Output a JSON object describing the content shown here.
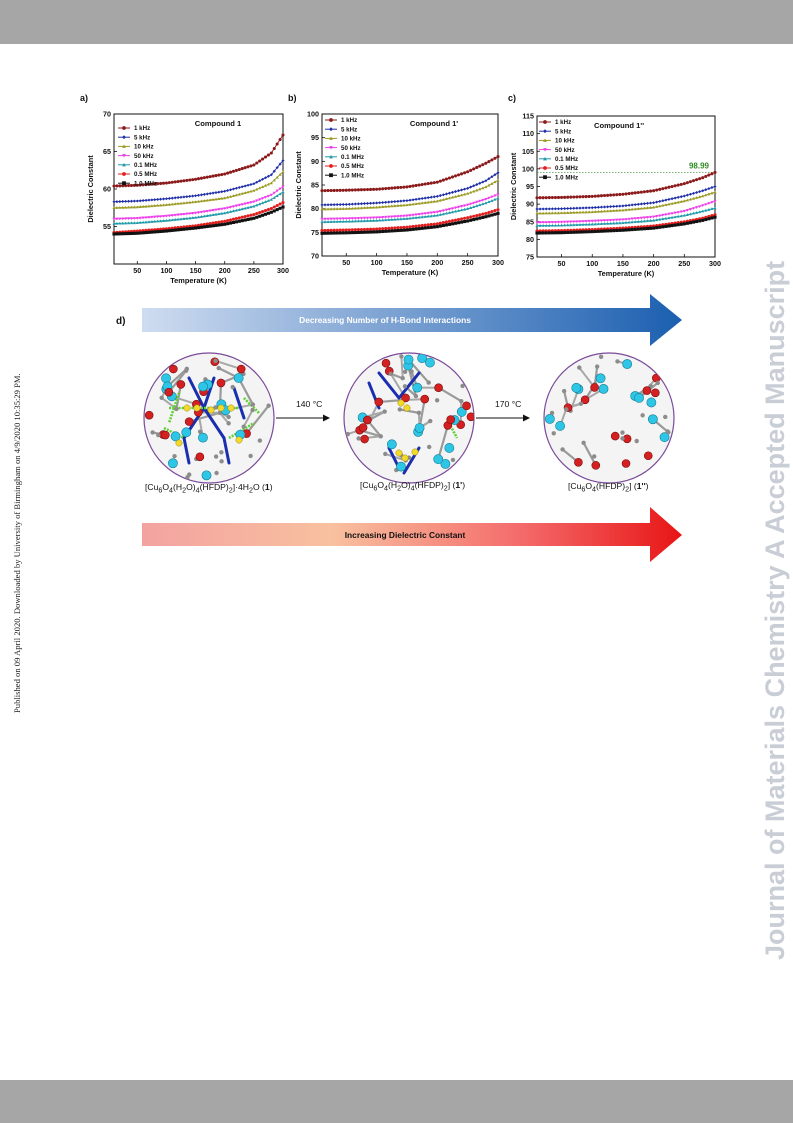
{
  "side_notes": {
    "published": "Published on 09 April 2020. Downloaded by University of Birmingham on 4/9/2020 10:35:29 PM.",
    "watermark": "Journal of Materials Chemistry A Accepted Manuscript"
  },
  "legend_colors": {
    "1 kHz": "#8b1a1a",
    "5 kHz": "#1f2fa8",
    "10 kHz": "#9a9a22",
    "50 kHz": "#ee3ee8",
    "0.1 MHz": "#1f9aa8",
    "0.5 MHz": "#e21f1f",
    "1.0 MHz": "#111111"
  },
  "chart_data": [
    {
      "type": "line",
      "panel": "a)",
      "title": "Compound 1",
      "xlabel": "Temperature (K)",
      "ylabel": "Dielectric Constant",
      "xlim": [
        10,
        300
      ],
      "ylim": [
        50,
        70
      ],
      "xticks": [
        50,
        100,
        150,
        200,
        250,
        300
      ],
      "yticks": [
        55,
        60,
        65,
        70
      ],
      "legend_labels": [
        "1  kHz",
        "5  kHz",
        "10  kHz",
        "50  kHz",
        "0.1 MHz",
        "0.5 MHz",
        "1.0 MHz"
      ],
      "series": [
        {
          "name": "1 kHz",
          "points": [
            [
              10,
              60.4
            ],
            [
              50,
              60.5
            ],
            [
              100,
              60.8
            ],
            [
              150,
              61.3
            ],
            [
              200,
              62.0
            ],
            [
              250,
              63.2
            ],
            [
              280,
              64.8
            ],
            [
              300,
              67.2
            ]
          ]
        },
        {
          "name": "5 kHz",
          "points": [
            [
              10,
              58.3
            ],
            [
              50,
              58.4
            ],
            [
              100,
              58.7
            ],
            [
              150,
              59.1
            ],
            [
              200,
              59.7
            ],
            [
              250,
              60.7
            ],
            [
              280,
              61.9
            ],
            [
              300,
              63.8
            ]
          ]
        },
        {
          "name": "10 kHz",
          "points": [
            [
              10,
              57.5
            ],
            [
              50,
              57.6
            ],
            [
              100,
              57.9
            ],
            [
              150,
              58.3
            ],
            [
              200,
              58.8
            ],
            [
              250,
              59.8
            ],
            [
              280,
              60.8
            ],
            [
              300,
              62.3
            ]
          ]
        },
        {
          "name": "50 kHz",
          "points": [
            [
              10,
              56.0
            ],
            [
              50,
              56.1
            ],
            [
              100,
              56.4
            ],
            [
              150,
              56.8
            ],
            [
              200,
              57.4
            ],
            [
              250,
              58.3
            ],
            [
              280,
              59.2
            ],
            [
              300,
              60.3
            ]
          ]
        },
        {
          "name": "0.1 MHz",
          "points": [
            [
              10,
              55.4
            ],
            [
              50,
              55.5
            ],
            [
              100,
              55.8
            ],
            [
              150,
              56.2
            ],
            [
              200,
              56.8
            ],
            [
              250,
              57.7
            ],
            [
              280,
              58.6
            ],
            [
              300,
              59.6
            ]
          ]
        },
        {
          "name": "0.5 MHz",
          "points": [
            [
              10,
              54.2
            ],
            [
              50,
              54.4
            ],
            [
              100,
              54.7
            ],
            [
              150,
              55.1
            ],
            [
              200,
              55.7
            ],
            [
              250,
              56.6
            ],
            [
              280,
              57.4
            ],
            [
              300,
              58.2
            ]
          ]
        },
        {
          "name": "1.0 MHz",
          "points": [
            [
              10,
              54.0
            ],
            [
              50,
              54.1
            ],
            [
              100,
              54.4
            ],
            [
              150,
              54.8
            ],
            [
              200,
              55.3
            ],
            [
              250,
              56.1
            ],
            [
              280,
              56.9
            ],
            [
              300,
              57.6
            ]
          ]
        }
      ]
    },
    {
      "type": "line",
      "panel": "b)",
      "title": "Compound 1'",
      "xlabel": "Temperature (K)",
      "ylabel": "Dielectric Constant",
      "xlim": [
        10,
        300
      ],
      "ylim": [
        70,
        100
      ],
      "xticks": [
        50,
        100,
        150,
        200,
        250,
        300
      ],
      "yticks": [
        70,
        75,
        80,
        85,
        90,
        95,
        100
      ],
      "legend_labels": [
        "1  kHz",
        "5  kHz",
        "10  kHz",
        "50  kHz",
        "0.1 MHz",
        "0.5 MHz",
        "1.0 MHz"
      ],
      "series": [
        {
          "name": "1 kHz",
          "points": [
            [
              10,
              83.8
            ],
            [
              50,
              83.9
            ],
            [
              100,
              84.1
            ],
            [
              150,
              84.6
            ],
            [
              200,
              85.6
            ],
            [
              250,
              87.8
            ],
            [
              280,
              89.6
            ],
            [
              300,
              91.0
            ]
          ]
        },
        {
          "name": "5 kHz",
          "points": [
            [
              10,
              80.8
            ],
            [
              50,
              80.9
            ],
            [
              100,
              81.2
            ],
            [
              150,
              81.7
            ],
            [
              200,
              82.6
            ],
            [
              250,
              84.3
            ],
            [
              280,
              85.9
            ],
            [
              300,
              87.6
            ]
          ]
        },
        {
          "name": "10 kHz",
          "points": [
            [
              10,
              79.9
            ],
            [
              50,
              80.0
            ],
            [
              100,
              80.3
            ],
            [
              150,
              80.8
            ],
            [
              200,
              81.6
            ],
            [
              250,
              83.2
            ],
            [
              280,
              84.6
            ],
            [
              300,
              86.0
            ]
          ]
        },
        {
          "name": "50 kHz",
          "points": [
            [
              10,
              77.8
            ],
            [
              50,
              77.9
            ],
            [
              100,
              78.1
            ],
            [
              150,
              78.5
            ],
            [
              200,
              79.3
            ],
            [
              250,
              80.8
            ],
            [
              280,
              82.0
            ],
            [
              300,
              83.0
            ]
          ]
        },
        {
          "name": "0.1 MHz",
          "points": [
            [
              10,
              77.2
            ],
            [
              50,
              77.3
            ],
            [
              100,
              77.5
            ],
            [
              150,
              77.9
            ],
            [
              200,
              78.6
            ],
            [
              250,
              80.0
            ],
            [
              280,
              81.2
            ],
            [
              300,
              82.2
            ]
          ]
        },
        {
          "name": "0.5 MHz",
          "points": [
            [
              10,
              75.4
            ],
            [
              50,
              75.5
            ],
            [
              100,
              75.7
            ],
            [
              150,
              76.1
            ],
            [
              200,
              76.8
            ],
            [
              250,
              78.1
            ],
            [
              280,
              79.0
            ],
            [
              300,
              79.8
            ]
          ]
        },
        {
          "name": "1.0 MHz",
          "points": [
            [
              10,
              74.8
            ],
            [
              50,
              74.9
            ],
            [
              100,
              75.1
            ],
            [
              150,
              75.5
            ],
            [
              200,
              76.2
            ],
            [
              250,
              77.4
            ],
            [
              280,
              78.3
            ],
            [
              300,
              79.0
            ]
          ]
        }
      ]
    },
    {
      "type": "line",
      "panel": "c)",
      "title": "Compound 1''",
      "xlabel": "Temperature (K)",
      "ylabel": "Dielectric Constant",
      "xlim": [
        10,
        300
      ],
      "ylim": [
        75,
        115
      ],
      "xticks": [
        50,
        100,
        150,
        200,
        250,
        300
      ],
      "yticks": [
        75,
        80,
        85,
        90,
        95,
        100,
        105,
        110,
        115
      ],
      "legend_labels": [
        "1  kHz",
        "5  kHz",
        "10  kHz",
        "50  kHz",
        "0.1 MHz",
        "0.5 MHz",
        "1.0 MHz"
      ],
      "annotation": {
        "text": "98.99",
        "y": 98.99
      },
      "series": [
        {
          "name": "1 kHz",
          "points": [
            [
              10,
              91.8
            ],
            [
              50,
              91.9
            ],
            [
              100,
              92.2
            ],
            [
              150,
              92.8
            ],
            [
              200,
              93.8
            ],
            [
              250,
              95.8
            ],
            [
              280,
              97.5
            ],
            [
              300,
              98.99
            ]
          ]
        },
        {
          "name": "5 kHz",
          "points": [
            [
              10,
              88.6
            ],
            [
              50,
              88.7
            ],
            [
              100,
              89.0
            ],
            [
              150,
              89.5
            ],
            [
              200,
              90.4
            ],
            [
              250,
              92.3
            ],
            [
              280,
              93.8
            ],
            [
              300,
              95.0
            ]
          ]
        },
        {
          "name": "10 kHz",
          "points": [
            [
              10,
              87.4
            ],
            [
              50,
              87.5
            ],
            [
              100,
              87.8
            ],
            [
              150,
              88.3
            ],
            [
              200,
              89.1
            ],
            [
              250,
              90.9
            ],
            [
              280,
              92.3
            ],
            [
              300,
              93.4
            ]
          ]
        },
        {
          "name": "50 kHz",
          "points": [
            [
              10,
              84.8
            ],
            [
              50,
              84.9
            ],
            [
              100,
              85.2
            ],
            [
              150,
              85.6
            ],
            [
              200,
              86.4
            ],
            [
              250,
              88.0
            ],
            [
              280,
              89.6
            ],
            [
              300,
              90.8
            ]
          ]
        },
        {
          "name": "0.1 MHz",
          "points": [
            [
              10,
              83.9
            ],
            [
              50,
              84.0
            ],
            [
              100,
              84.3
            ],
            [
              150,
              84.7
            ],
            [
              200,
              85.4
            ],
            [
              250,
              86.8
            ],
            [
              280,
              88.0
            ],
            [
              300,
              88.9
            ]
          ]
        },
        {
          "name": "0.5 MHz",
          "points": [
            [
              10,
              82.4
            ],
            [
              50,
              82.5
            ],
            [
              100,
              82.8
            ],
            [
              150,
              83.2
            ],
            [
              200,
              83.8
            ],
            [
              250,
              85.0
            ],
            [
              280,
              86.0
            ],
            [
              300,
              87.0
            ]
          ]
        },
        {
          "name": "1.0 MHz",
          "points": [
            [
              10,
              81.8
            ],
            [
              50,
              81.9
            ],
            [
              100,
              82.2
            ],
            [
              150,
              82.6
            ],
            [
              200,
              83.2
            ],
            [
              250,
              84.4
            ],
            [
              280,
              85.4
            ],
            [
              300,
              86.3
            ]
          ]
        }
      ]
    }
  ],
  "scheme": {
    "panel": "d)",
    "top_arrow_text": "Decreasing Number of H-Bond Interactions",
    "bottom_arrow_text": "Increasing Dielectric Constant",
    "step1": "140 °C",
    "step2": "170 °C",
    "compound1_html": "[Cu<sub>6</sub>O<sub>4</sub>(H<sub>2</sub>O)<sub>4</sub>(HFDP)<sub>2</sub>]·4H<sub>2</sub>O  (<b>1</b>)",
    "compound2_html": "[Cu<sub>6</sub>O<sub>4</sub>(H<sub>2</sub>O)<sub>4</sub>(HFDP)<sub>2</sub>] (<b>1'</b>)",
    "compound3_html": "[Cu<sub>6</sub>O<sub>4</sub>(HFDP)<sub>2</sub>] (<b>1''</b>)"
  }
}
